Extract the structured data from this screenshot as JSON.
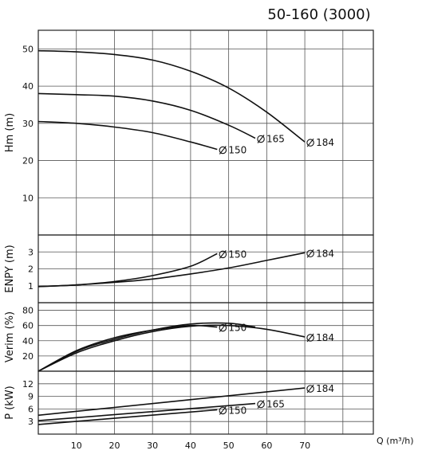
{
  "title": "50-160 (3000)",
  "chart_data": {
    "type": "line",
    "xlabel": "Q (m³/h)",
    "x_ticks": [
      10,
      20,
      30,
      40,
      50,
      60,
      70
    ],
    "xlim": [
      0,
      88
    ],
    "panels": [
      {
        "id": "head",
        "ylabel": "Hm (m)",
        "ylim": [
          0,
          55
        ],
        "y_ticks": [
          10,
          20,
          30,
          40,
          50
        ],
        "series": [
          {
            "name": "150",
            "label": "150",
            "x": [
              0,
              10,
              20,
              30,
              40,
              47
            ],
            "y": [
              30.5,
              30,
              29,
              27.5,
              25,
              23
            ]
          },
          {
            "name": "165",
            "label": "165",
            "x": [
              0,
              10,
              20,
              30,
              40,
              50,
              57
            ],
            "y": [
              38,
              37.7,
              37.3,
              36,
              33.5,
              29.5,
              26
            ]
          },
          {
            "name": "184",
            "label": "184",
            "x": [
              0,
              10,
              20,
              30,
              40,
              50,
              60,
              70
            ],
            "y": [
              49.5,
              49.2,
              48.5,
              47,
              44,
              39.5,
              33,
              25
            ]
          }
        ]
      },
      {
        "id": "npsh",
        "ylabel": "ENPY (m)",
        "ylim": [
          0,
          4
        ],
        "y_ticks": [
          1,
          2,
          3
        ],
        "series": [
          {
            "name": "150",
            "label": "150",
            "x": [
              0,
              10,
              20,
              30,
              40,
              47
            ],
            "y": [
              0.95,
              1.05,
              1.25,
              1.6,
              2.15,
              2.9
            ]
          },
          {
            "name": "184",
            "label": "184",
            "x": [
              0,
              10,
              20,
              30,
              40,
              50,
              60,
              70
            ],
            "y": [
              0.95,
              1.05,
              1.2,
              1.4,
              1.7,
              2.05,
              2.5,
              2.95
            ]
          }
        ]
      },
      {
        "id": "efficiency",
        "ylabel": "Verim (%)",
        "ylim": [
          0,
          90
        ],
        "y_ticks": [
          20,
          40,
          60,
          80
        ],
        "series": [
          {
            "name": "150",
            "label": "150",
            "x": [
              0,
              10,
              20,
              30,
              40,
              47
            ],
            "y": [
              0,
              27,
              44,
              54,
              60,
              58
            ]
          },
          {
            "name": "165",
            "label": "",
            "x": [
              0,
              10,
              20,
              30,
              40,
              50,
              57
            ],
            "y": [
              0,
              26,
              42,
              54,
              62,
              63,
              58
            ]
          },
          {
            "name": "184",
            "label": "184",
            "x": [
              0,
              10,
              20,
              30,
              40,
              50,
              60,
              70
            ],
            "y": [
              0,
              24,
              40,
              52,
              59,
              60,
              55,
              45
            ]
          }
        ]
      },
      {
        "id": "power",
        "ylabel": "P (kW)",
        "ylim": [
          0,
          15
        ],
        "y_ticks": [
          3,
          6,
          9,
          12
        ],
        "series": [
          {
            "name": "150",
            "label": "150",
            "x": [
              0,
              47
            ],
            "y": [
              2.3,
              5.8
            ]
          },
          {
            "name": "165",
            "label": "165",
            "x": [
              0,
              57
            ],
            "y": [
              3.2,
              7.3
            ]
          },
          {
            "name": "184",
            "label": "184",
            "x": [
              0,
              70
            ],
            "y": [
              4.5,
              11
            ]
          }
        ]
      }
    ]
  }
}
